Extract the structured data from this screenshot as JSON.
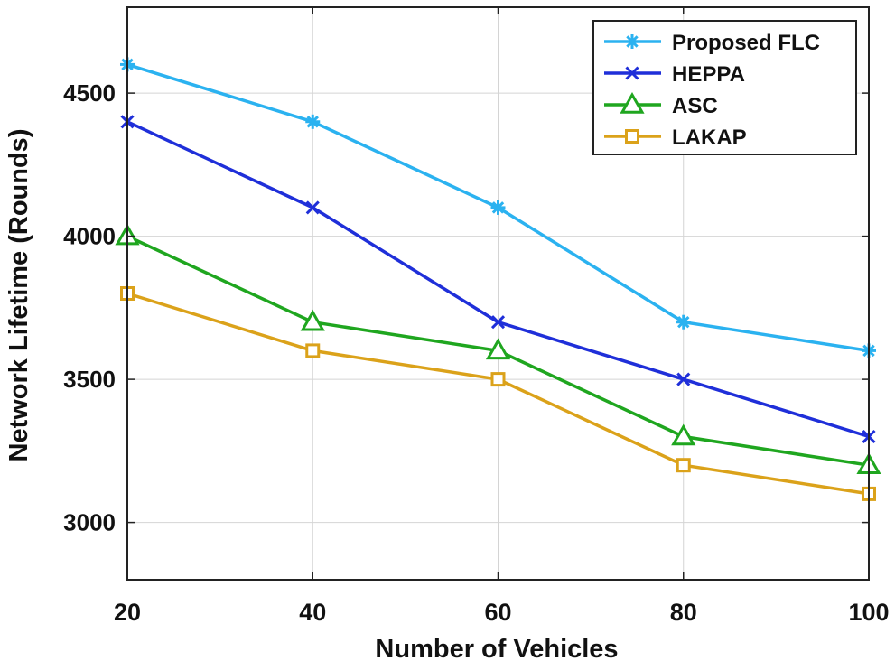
{
  "chart_data": {
    "type": "line",
    "title": "",
    "xlabel": "Number of Vehicles",
    "ylabel": "Network Lifetime (Rounds)",
    "x": [
      20,
      40,
      60,
      80,
      100
    ],
    "xlim": [
      20,
      100
    ],
    "ylim": [
      2800,
      4800
    ],
    "xticks": [
      20,
      40,
      60,
      80,
      100
    ],
    "yticks": [
      3000,
      3500,
      4000,
      4500
    ],
    "grid": true,
    "legend_position": "top-right",
    "series": [
      {
        "name": "Proposed FLC",
        "values": [
          4600,
          4400,
          4100,
          3700,
          3600
        ],
        "color": "#2bb2f0",
        "marker": "asterisk"
      },
      {
        "name": "HEPPA",
        "values": [
          4400,
          4100,
          3700,
          3500,
          3300
        ],
        "color": "#1f2fd9",
        "marker": "x"
      },
      {
        "name": "ASC",
        "values": [
          4000,
          3700,
          3600,
          3300,
          3200
        ],
        "color": "#1fa61f",
        "marker": "triangle"
      },
      {
        "name": "LAKAP",
        "values": [
          3800,
          3600,
          3500,
          3200,
          3100
        ],
        "color": "#dba21a",
        "marker": "square"
      }
    ]
  }
}
